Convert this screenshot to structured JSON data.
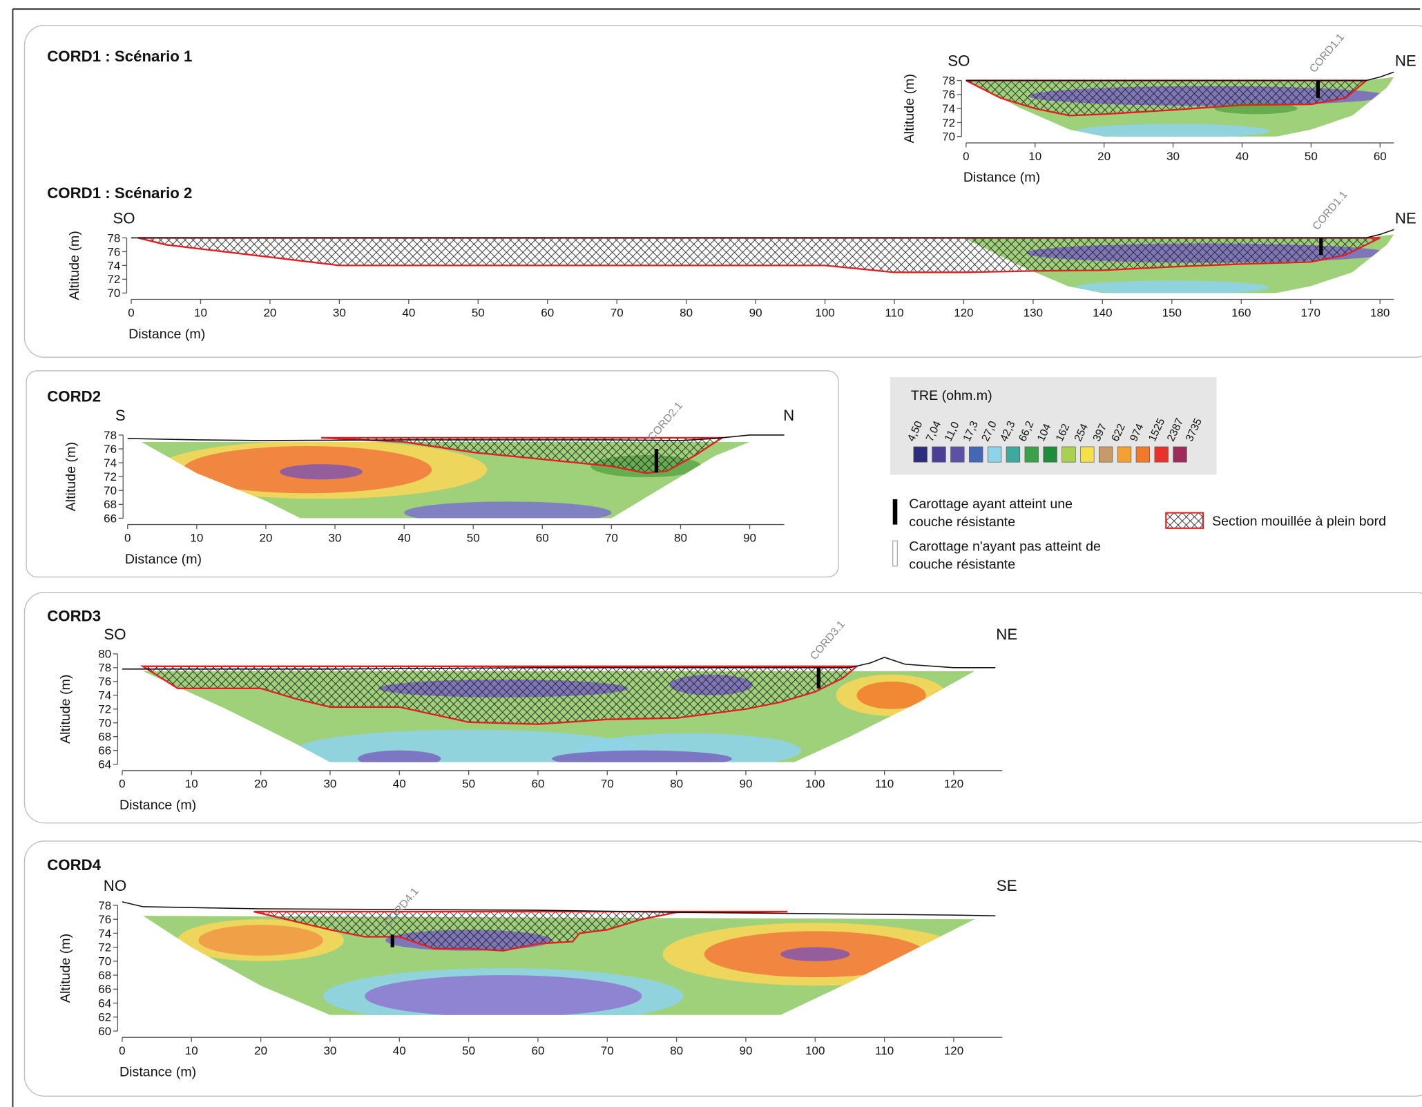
{
  "chart_data": [
    {
      "type": "section",
      "title": "CORD1 : Scénario 1",
      "direction_labels": [
        "SO",
        "NE"
      ],
      "xlabel": "Distance (m)",
      "ylabel": "Altitude (m)",
      "xlim": [
        0,
        62
      ],
      "ylim": [
        70,
        78
      ],
      "xticks": [
        0,
        10,
        20,
        30,
        40,
        50,
        60
      ],
      "yticks": [
        70,
        72,
        74,
        76,
        78
      ],
      "profile": {
        "x": [
          0,
          58,
          60,
          62
        ],
        "y": [
          78,
          78,
          78.5,
          79.2
        ]
      },
      "tomography": {
        "color": "#9fd07a",
        "x": [
          0,
          8,
          15,
          20,
          45,
          50,
          56,
          61,
          62,
          58,
          0
        ],
        "y": [
          78,
          74,
          71,
          70,
          70,
          71,
          73,
          77,
          78.5,
          78,
          78
        ]
      },
      "anomalies": [
        {
          "x": 35,
          "y": 75.8,
          "rx": 26,
          "ry": 1.4,
          "color": "#7b6cc0"
        },
        {
          "x": 30,
          "y": 70.8,
          "rx": 14,
          "ry": 1,
          "color": "#8fd3e8"
        },
        {
          "x": 42,
          "y": 74,
          "rx": 6,
          "ry": 0.8,
          "color": "#5fa84a"
        }
      ],
      "wetted": {
        "x": [
          0,
          5,
          10,
          15,
          20,
          30,
          40,
          50,
          55,
          58,
          58,
          0
        ],
        "y": [
          78,
          75.5,
          74,
          73,
          73.2,
          73.8,
          74.5,
          74.6,
          75.5,
          78,
          78,
          78
        ]
      },
      "borehole": {
        "label": "CORD1.1",
        "x": 51,
        "top": 78,
        "bottom": 75.5,
        "reached": true
      }
    },
    {
      "type": "section",
      "title": "CORD1 : Scénario 2",
      "direction_labels": [
        "SO",
        "NE"
      ],
      "xlabel": "Distance (m)",
      "ylabel": "Altitude (m)",
      "xlim": [
        0,
        182
      ],
      "ylim": [
        70,
        78
      ],
      "xticks": [
        0,
        10,
        20,
        30,
        40,
        50,
        60,
        70,
        80,
        90,
        100,
        110,
        120,
        130,
        140,
        150,
        160,
        170,
        180
      ],
      "yticks": [
        70,
        72,
        74,
        76,
        78
      ],
      "profile": {
        "x": [
          0,
          120,
          178,
          180,
          182
        ],
        "y": [
          78,
          78,
          78,
          78.5,
          79.2
        ]
      },
      "tomography": {
        "color": "#9fd07a",
        "x": [
          120,
          128,
          135,
          140,
          165,
          170,
          176,
          181,
          182,
          178,
          120
        ],
        "y": [
          78,
          74,
          71,
          70,
          70,
          71,
          73,
          77,
          78.5,
          78,
          78
        ]
      },
      "anomalies": [
        {
          "x": 155,
          "y": 75.8,
          "rx": 26,
          "ry": 1.4,
          "color": "#7b6cc0"
        },
        {
          "x": 150,
          "y": 70.8,
          "rx": 14,
          "ry": 1,
          "color": "#8fd3e8"
        }
      ],
      "wetted": {
        "x": [
          1,
          5,
          30,
          35,
          100,
          110,
          120,
          130,
          140,
          150,
          160,
          170,
          175,
          180,
          180,
          1
        ],
        "y": [
          78,
          77,
          74,
          74,
          74,
          73,
          73,
          73.2,
          73.3,
          73.8,
          74.2,
          74.5,
          75.5,
          78,
          78,
          78
        ]
      },
      "borehole": {
        "label": "CORD1.1",
        "x": 171.5,
        "top": 78,
        "bottom": 75.5,
        "reached": true
      }
    },
    {
      "type": "section",
      "title": "CORD2",
      "direction_labels": [
        "S",
        "N"
      ],
      "xlabel": "Distance (m)",
      "ylabel": "Altitude (m)",
      "xlim": [
        0,
        95
      ],
      "ylim": [
        66,
        78
      ],
      "xticks": [
        0,
        10,
        20,
        30,
        40,
        50,
        60,
        70,
        80,
        90
      ],
      "yticks": [
        66,
        68,
        70,
        72,
        74,
        76,
        78
      ],
      "profile": {
        "x": [
          0,
          10,
          20,
          40,
          70,
          80,
          85,
          90,
          95
        ],
        "y": [
          77.5,
          77.3,
          77.2,
          77.3,
          77.3,
          77.2,
          77.5,
          78,
          78
        ]
      },
      "tomography": {
        "color": "#9fd07a",
        "x": [
          2,
          10,
          20,
          25,
          70,
          75,
          85,
          90,
          2
        ],
        "y": [
          77,
          72.5,
          68.5,
          66,
          66,
          69,
          75,
          77,
          77
        ]
      },
      "anomalies": [
        {
          "x": 28,
          "y": 73,
          "rx": 24,
          "ry": 4.2,
          "color": "#f6d65a"
        },
        {
          "x": 26,
          "y": 73,
          "rx": 18,
          "ry": 3.4,
          "color": "#ef7d3c"
        },
        {
          "x": 28,
          "y": 72.7,
          "rx": 6,
          "ry": 1.1,
          "color": "#8a5aa5"
        },
        {
          "x": 55,
          "y": 66.8,
          "rx": 15,
          "ry": 1.6,
          "color": "#7b78c8"
        },
        {
          "x": 75,
          "y": 73.5,
          "rx": 8,
          "ry": 1.6,
          "color": "#5fa84a"
        }
      ],
      "wetted": {
        "x": [
          28,
          40,
          50,
          60,
          70,
          75,
          78,
          82,
          86,
          86,
          28
        ],
        "y": [
          77.6,
          77,
          75.5,
          74.5,
          73.5,
          72.5,
          72.8,
          75,
          77.6,
          77.6,
          77.6
        ]
      },
      "borehole": {
        "label": "CORD2.1",
        "x": 76.5,
        "top": 76,
        "bottom": 72.6,
        "reached": true
      }
    },
    {
      "type": "section",
      "title": "CORD3",
      "direction_labels": [
        "SO",
        "NE"
      ],
      "xlabel": "Distance (m)",
      "ylabel": "Altitude (m)",
      "xlim": [
        0,
        127
      ],
      "ylim": [
        64,
        80
      ],
      "xticks": [
        0,
        10,
        20,
        30,
        40,
        50,
        60,
        70,
        80,
        90,
        100,
        110,
        120
      ],
      "yticks": [
        64,
        66,
        68,
        70,
        72,
        74,
        76,
        78,
        80
      ],
      "profile": {
        "x": [
          0,
          30,
          60,
          100,
          105,
          108,
          110,
          113,
          120,
          126
        ],
        "y": [
          77.8,
          77.8,
          78,
          78,
          78,
          78.7,
          79.5,
          78.5,
          78,
          78
        ]
      },
      "tomography": {
        "color": "#9fd07a",
        "x": [
          3,
          15,
          25,
          30,
          97,
          105,
          115,
          123,
          3
        ],
        "y": [
          77.5,
          72,
          67,
          64.3,
          64.3,
          68,
          73,
          77.5,
          77.5
        ]
      },
      "anomalies": [
        {
          "x": 50,
          "y": 66,
          "rx": 25,
          "ry": 3,
          "color": "#8fd3e8"
        },
        {
          "x": 82,
          "y": 66,
          "rx": 16,
          "ry": 2.5,
          "color": "#8fd3e8"
        },
        {
          "x": 40,
          "y": 64.8,
          "rx": 6,
          "ry": 1.2,
          "color": "#7b6cc0"
        },
        {
          "x": 75,
          "y": 64.8,
          "rx": 13,
          "ry": 1.2,
          "color": "#7b6cc0"
        },
        {
          "x": 55,
          "y": 75,
          "rx": 18,
          "ry": 1.3,
          "color": "#7b6cc0"
        },
        {
          "x": 85,
          "y": 75.5,
          "rx": 6,
          "ry": 1.5,
          "color": "#7b6cc0"
        },
        {
          "x": 111,
          "y": 74,
          "rx": 8,
          "ry": 3,
          "color": "#f6d65a"
        },
        {
          "x": 111,
          "y": 74,
          "rx": 5,
          "ry": 2,
          "color": "#f08030"
        }
      ],
      "wetted": {
        "x": [
          3,
          8,
          20,
          25,
          30,
          40,
          50,
          60,
          70,
          80,
          90,
          95,
          100,
          104,
          106,
          106,
          3
        ],
        "y": [
          78.2,
          75,
          75,
          73.5,
          72.3,
          72.3,
          70.1,
          69.8,
          70.5,
          70.7,
          72,
          73,
          74.5,
          76.5,
          78.2,
          78.2,
          78.2
        ]
      },
      "borehole": {
        "label": "CORD3.1",
        "x": 100.5,
        "top": 78,
        "bottom": 75,
        "reached": true
      }
    },
    {
      "type": "section",
      "title": "CORD4",
      "direction_labels": [
        "NO",
        "SE"
      ],
      "xlabel": "Distance (m)",
      "ylabel": "Altitude (m)",
      "xlim": [
        0,
        127
      ],
      "ylim": [
        60,
        78
      ],
      "xticks": [
        0,
        10,
        20,
        30,
        40,
        50,
        60,
        70,
        80,
        90,
        100,
        110,
        120
      ],
      "yticks": [
        60,
        62,
        64,
        66,
        68,
        70,
        72,
        74,
        76,
        78
      ],
      "profile": {
        "x": [
          0,
          3,
          20,
          60,
          80,
          100,
          120,
          126
        ],
        "y": [
          78.5,
          77.8,
          77.5,
          77.3,
          77,
          76.8,
          76.6,
          76.5
        ]
      },
      "tomography": {
        "color": "#9fd07a",
        "x": [
          3,
          10,
          20,
          30,
          95,
          105,
          115,
          123,
          3
        ],
        "y": [
          76.5,
          72,
          66.5,
          62.3,
          62.3,
          67,
          72,
          76,
          76.5
        ]
      },
      "anomalies": [
        {
          "x": 20,
          "y": 73,
          "rx": 12,
          "ry": 3,
          "color": "#f6d65a"
        },
        {
          "x": 20,
          "y": 73,
          "rx": 9,
          "ry": 2.2,
          "color": "#ef9a45"
        },
        {
          "x": 100,
          "y": 71,
          "rx": 22,
          "ry": 4.5,
          "color": "#f6d65a"
        },
        {
          "x": 100,
          "y": 71,
          "rx": 16,
          "ry": 3.3,
          "color": "#ef7d3c"
        },
        {
          "x": 100,
          "y": 71,
          "rx": 5,
          "ry": 1,
          "color": "#8a5aa5"
        },
        {
          "x": 55,
          "y": 65,
          "rx": 26,
          "ry": 4,
          "color": "#8fd3e8"
        },
        {
          "x": 55,
          "y": 65,
          "rx": 20,
          "ry": 3,
          "color": "#8f7bd0"
        },
        {
          "x": 50,
          "y": 73,
          "rx": 12,
          "ry": 1.5,
          "color": "#7b6cc0"
        }
      ],
      "wetted": {
        "x": [
          19,
          30,
          35,
          40,
          45,
          50,
          55,
          60,
          65,
          66,
          70,
          75,
          80,
          96,
          96,
          19
        ],
        "y": [
          77.1,
          74.5,
          73.5,
          73.5,
          71.8,
          71.8,
          71.5,
          72.5,
          72.8,
          74,
          74.5,
          76,
          77,
          77.1,
          77.1,
          77.1
        ]
      },
      "borehole": {
        "label": "CORD4.1",
        "x": 39,
        "top": 73.8,
        "bottom": 72,
        "reached": true
      }
    }
  ],
  "legend": {
    "title": "TRE (ohm.m)",
    "bounds": [
      {
        "value": 4.5,
        "label": "4,50"
      },
      {
        "value": 7.04,
        "label": "7,04"
      },
      {
        "value": 11.0,
        "label": "11,0"
      },
      {
        "value": 17.3,
        "label": "17,3"
      },
      {
        "value": 27.0,
        "label": "27,0"
      },
      {
        "value": 42.3,
        "label": "42,3"
      },
      {
        "value": 66.2,
        "label": "66,2"
      },
      104,
      162,
      254,
      397,
      622,
      974,
      1525,
      2387,
      3735
    ],
    "colors": [
      "#2b2e7d",
      "#4a3f95",
      "#5b52a8",
      "#4468b5",
      "#8fd3e8",
      "#3fa9a0",
      "#3aa04a",
      "#1e8c3a",
      "#a9d04f",
      "#f5e04a",
      "#c79a6a",
      "#f5a033",
      "#f07a2a",
      "#e8332a",
      "#a02a5a"
    ],
    "borehole_reached": [
      "Carottage ayant atteint une",
      "couche résistante"
    ],
    "borehole_not_reached": [
      "Carottage n'ayant pas atteint de",
      "couche résistante"
    ],
    "wetted_section": "Section mouillée à plein bord"
  }
}
